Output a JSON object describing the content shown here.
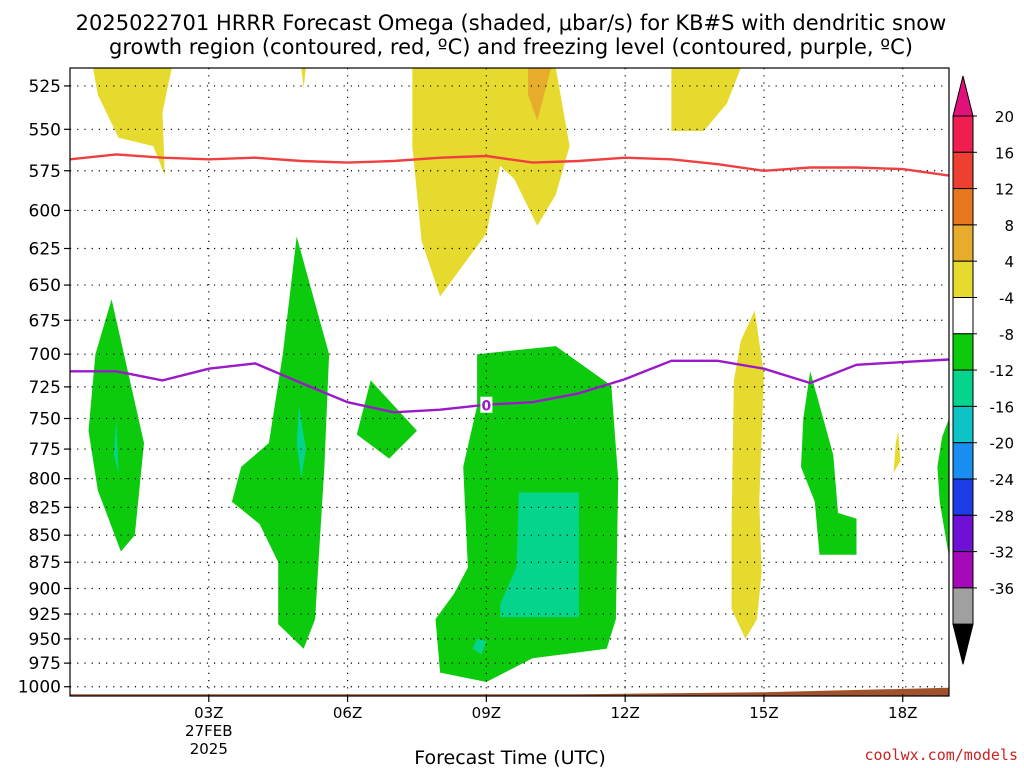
{
  "title_line1": "2025022701 HRRR Forecast Omega (shaded, μbar/s) for KB#S with dendritic snow",
  "title_line2": "growth region (contoured, red, ºC) and freezing level (contoured, purple, ºC)",
  "credit": "coolwx.com/models",
  "credit_color": "#cc2222",
  "chart_data": {
    "type": "time-height cross section",
    "xlabel": "Forecast Time (UTC)",
    "x_ticks": [
      {
        "hour": 3,
        "label": "03Z",
        "sub": [
          "27FEB",
          "2025"
        ]
      },
      {
        "hour": 6,
        "label": "06Z"
      },
      {
        "hour": 9,
        "label": "09Z"
      },
      {
        "hour": 12,
        "label": "12Z"
      },
      {
        "hour": 15,
        "label": "15Z"
      },
      {
        "hour": 18,
        "label": "18Z"
      }
    ],
    "xlim": [
      0.0,
      19.0
    ],
    "ylabel": "",
    "y_ticks": [
      525,
      550,
      575,
      600,
      625,
      650,
      675,
      700,
      725,
      750,
      775,
      800,
      825,
      850,
      875,
      900,
      925,
      950,
      975,
      1000
    ],
    "ylim": [
      515,
      1010
    ],
    "y_scale": "log-pressure, 1000 at bottom",
    "grid": "dotted",
    "colorbar": {
      "labels": [
        "20",
        "16",
        "12",
        "8",
        "4",
        "-4",
        "-8",
        "-12",
        "-16",
        "-20",
        "-24",
        "-28",
        "-32",
        "-36"
      ],
      "colors": [
        "#f01e50",
        "#ee4030",
        "#e8781e",
        "#e8ac2c",
        "#e6da2e",
        "#ffffff",
        "#0cca0c",
        "#04d48c",
        "#0cc4c4",
        "#1a8ef0",
        "#1c3ce6",
        "#6e10d6",
        "#a60ab8",
        "#a0a0a0"
      ],
      "top_arrow_color": "#e0127a",
      "bottom_arrow_color": "#000000"
    },
    "dgz_line_color": "#ee4040",
    "dgz_line": [
      [
        0.0,
        568
      ],
      [
        1.0,
        565
      ],
      [
        2.0,
        567
      ],
      [
        3.0,
        568
      ],
      [
        4.0,
        567
      ],
      [
        5.0,
        569
      ],
      [
        6.0,
        570
      ],
      [
        7.0,
        569
      ],
      [
        8.0,
        567
      ],
      [
        9.0,
        566
      ],
      [
        10.0,
        570
      ],
      [
        11.0,
        569
      ],
      [
        12.0,
        567
      ],
      [
        13.0,
        568
      ],
      [
        14.0,
        571
      ],
      [
        15.0,
        575
      ],
      [
        16.0,
        573
      ],
      [
        17.0,
        573
      ],
      [
        18.0,
        574
      ],
      [
        19.0,
        578
      ]
    ],
    "freezing_line_color": "#9a1ac8",
    "freezing_line_label": "0",
    "freezing_line": [
      [
        0.0,
        713
      ],
      [
        1.0,
        713
      ],
      [
        2.0,
        720
      ],
      [
        3.0,
        711
      ],
      [
        4.0,
        707
      ],
      [
        5.0,
        722
      ],
      [
        6.0,
        737
      ],
      [
        7.0,
        745
      ],
      [
        8.0,
        743
      ],
      [
        9.0,
        739
      ],
      [
        10.0,
        737
      ],
      [
        11.0,
        730
      ],
      [
        12.0,
        719
      ],
      [
        13.0,
        705
      ],
      [
        14.0,
        705
      ],
      [
        15.0,
        711
      ],
      [
        16.0,
        722
      ],
      [
        17.0,
        708
      ],
      [
        18.0,
        706
      ],
      [
        19.0,
        704
      ]
    ],
    "terrain_color": "#a0522d",
    "terrain_top": [
      [
        0.0,
        1008
      ],
      [
        11.0,
        1008
      ],
      [
        15.0,
        1006
      ],
      [
        19.0,
        1001
      ]
    ],
    "regions": [
      {
        "bin": "4 to 8",
        "color": "#e6da2e",
        "points": [
          [
            0.5,
            515
          ],
          [
            2.2,
            515
          ],
          [
            2.0,
            540
          ],
          [
            2.05,
            578
          ],
          [
            1.8,
            560
          ],
          [
            1.05,
            555
          ],
          [
            0.6,
            530
          ]
        ]
      },
      {
        "bin": "4 to 8",
        "color": "#e6da2e",
        "points": [
          [
            5.0,
            515
          ],
          [
            5.05,
            526
          ],
          [
            5.1,
            515
          ]
        ]
      },
      {
        "bin": "4 to 8",
        "color": "#e6da2e",
        "points": [
          [
            7.4,
            515
          ],
          [
            10.5,
            515
          ],
          [
            10.8,
            560
          ],
          [
            10.5,
            590
          ],
          [
            10.1,
            610
          ],
          [
            9.6,
            580
          ],
          [
            9.3,
            572
          ],
          [
            9.0,
            615
          ],
          [
            8.0,
            658
          ],
          [
            7.6,
            620
          ],
          [
            7.4,
            560
          ]
        ]
      },
      {
        "bin": "8 to 12",
        "color": "#e8ac2c",
        "points": [
          [
            9.9,
            515
          ],
          [
            10.4,
            515
          ],
          [
            10.1,
            545
          ],
          [
            9.9,
            530
          ]
        ]
      },
      {
        "bin": "4 to 8",
        "color": "#e6da2e",
        "points": [
          [
            13.0,
            515
          ],
          [
            14.5,
            515
          ],
          [
            14.2,
            535
          ],
          [
            13.7,
            551
          ],
          [
            13.0,
            551
          ]
        ]
      },
      {
        "bin": "4 to 8",
        "color": "#e6da2e",
        "points": [
          [
            14.8,
            668
          ],
          [
            15.0,
            715
          ],
          [
            14.9,
            820
          ],
          [
            14.95,
            885
          ],
          [
            14.85,
            930
          ],
          [
            14.6,
            950
          ],
          [
            14.3,
            920
          ],
          [
            14.3,
            840
          ],
          [
            14.35,
            720
          ],
          [
            14.5,
            690
          ]
        ]
      },
      {
        "bin": "4 to 8",
        "color": "#e6da2e",
        "points": [
          [
            17.9,
            760
          ],
          [
            17.95,
            785
          ],
          [
            17.8,
            795
          ],
          [
            17.85,
            770
          ]
        ]
      },
      {
        "bin": "-4 to -8",
        "color": "#0cca0c",
        "points": [
          [
            0.9,
            660
          ],
          [
            1.6,
            770
          ],
          [
            1.4,
            850
          ],
          [
            1.1,
            865
          ],
          [
            0.6,
            810
          ],
          [
            0.4,
            760
          ],
          [
            0.55,
            700
          ]
        ]
      },
      {
        "bin": "-8 to -12",
        "color": "#04d48c",
        "points": [
          [
            1.0,
            750
          ],
          [
            1.05,
            795
          ],
          [
            0.95,
            780
          ]
        ]
      },
      {
        "bin": "-4 to -8",
        "color": "#0cca0c",
        "points": [
          [
            4.9,
            617
          ],
          [
            5.6,
            700
          ],
          [
            5.5,
            790
          ],
          [
            5.35,
            890
          ],
          [
            5.3,
            930
          ],
          [
            5.05,
            960
          ],
          [
            4.5,
            935
          ],
          [
            4.5,
            875
          ],
          [
            4.1,
            840
          ],
          [
            3.5,
            820
          ],
          [
            3.7,
            790
          ],
          [
            4.3,
            770
          ],
          [
            4.6,
            700
          ]
        ]
      },
      {
        "bin": "-8 to -12",
        "color": "#04d48c",
        "points": [
          [
            4.95,
            740
          ],
          [
            5.1,
            775
          ],
          [
            5.0,
            800
          ],
          [
            4.9,
            770
          ]
        ]
      },
      {
        "bin": "-4 to -8",
        "color": "#0cca0c",
        "points": [
          [
            6.5,
            720
          ],
          [
            7.5,
            760
          ],
          [
            6.9,
            783
          ],
          [
            6.2,
            763
          ]
        ]
      },
      {
        "bin": "-4 to -8",
        "color": "#0cca0c",
        "points": [
          [
            8.8,
            700
          ],
          [
            10.5,
            694
          ],
          [
            11.7,
            724
          ],
          [
            11.85,
            800
          ],
          [
            11.8,
            930
          ],
          [
            11.6,
            960
          ],
          [
            10.0,
            970
          ],
          [
            9.0,
            995
          ],
          [
            8.0,
            985
          ],
          [
            7.9,
            930
          ],
          [
            8.3,
            905
          ],
          [
            8.6,
            880
          ],
          [
            8.5,
            790
          ],
          [
            8.8,
            740
          ]
        ]
      },
      {
        "bin": "-8 to -12",
        "color": "#04d48c",
        "points": [
          [
            9.7,
            812
          ],
          [
            11.0,
            812
          ],
          [
            11.0,
            928
          ],
          [
            9.3,
            928
          ],
          [
            9.3,
            915
          ],
          [
            9.65,
            880
          ]
        ]
      },
      {
        "bin": "-8 to -12",
        "color": "#04d48c",
        "points": [
          [
            8.8,
            950
          ],
          [
            9.0,
            952
          ],
          [
            8.9,
            966
          ],
          [
            8.7,
            960
          ]
        ]
      },
      {
        "bin": "-4 to -8",
        "color": "#0cca0c",
        "points": [
          [
            16.0,
            713
          ],
          [
            16.5,
            780
          ],
          [
            16.6,
            830
          ],
          [
            17.0,
            835
          ],
          [
            17.0,
            868
          ],
          [
            16.2,
            868
          ],
          [
            16.1,
            820
          ],
          [
            15.8,
            790
          ],
          [
            15.85,
            750
          ]
        ]
      },
      {
        "bin": "-4 to -8",
        "color": "#0cca0c",
        "points": [
          [
            19.0,
            750
          ],
          [
            19.0,
            870
          ],
          [
            18.8,
            820
          ],
          [
            18.75,
            790
          ],
          [
            18.85,
            765
          ]
        ]
      }
    ]
  }
}
